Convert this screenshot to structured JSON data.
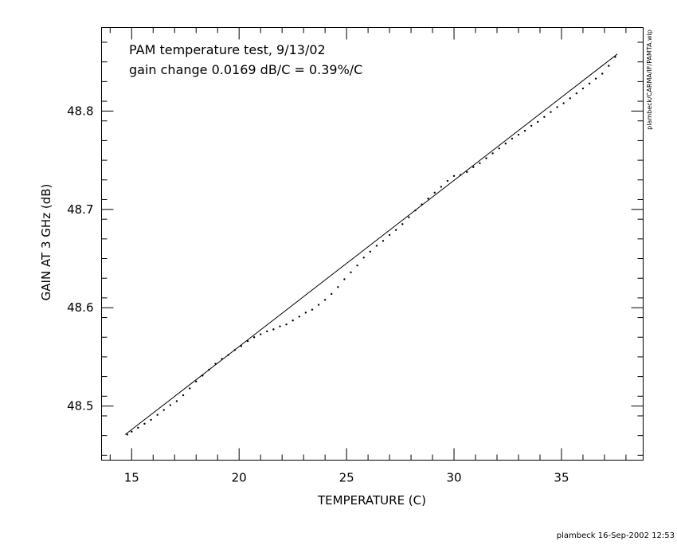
{
  "chart_data": {
    "type": "scatter",
    "title_lines": [
      "PAM temperature test, 9/13/02",
      "gain change 0.0169 dB/C = 0.39%/C"
    ],
    "xlabel": "TEMPERATURE (C)",
    "ylabel": "GAIN AT 3 GHz (dB)",
    "xlim": [
      13.6,
      38.8
    ],
    "ylim": [
      48.445,
      48.885
    ],
    "x_ticks": [
      15,
      20,
      25,
      30,
      35
    ],
    "y_ticks": [
      48.5,
      48.6,
      48.7,
      48.8
    ],
    "y_tick_labels": [
      "48.5",
      "48.6",
      "48.7",
      "48.8"
    ],
    "grid": false,
    "fit_line": {
      "x": [
        14.7,
        37.6
      ],
      "y": [
        48.471,
        48.858
      ],
      "slope_db_per_c": 0.0169
    },
    "series": [
      {
        "points": [
          [
            14.8,
            48.471
          ],
          [
            15.0,
            48.474
          ],
          [
            15.3,
            48.478
          ],
          [
            15.6,
            48.482
          ],
          [
            15.9,
            48.486
          ],
          [
            16.2,
            48.491
          ],
          [
            16.5,
            48.496
          ],
          [
            16.8,
            48.501
          ],
          [
            17.1,
            48.505
          ],
          [
            17.4,
            48.511
          ],
          [
            17.7,
            48.518
          ],
          [
            18.0,
            48.525
          ],
          [
            18.3,
            48.531
          ],
          [
            18.6,
            48.537
          ],
          [
            18.9,
            48.543
          ],
          [
            19.2,
            48.548
          ],
          [
            19.5,
            48.552
          ],
          [
            19.8,
            48.557
          ],
          [
            20.1,
            48.561
          ],
          [
            20.4,
            48.566
          ],
          [
            20.7,
            48.57
          ],
          [
            21.0,
            48.573
          ],
          [
            21.3,
            48.576
          ],
          [
            21.6,
            48.578
          ],
          [
            21.9,
            48.581
          ],
          [
            22.2,
            48.583
          ],
          [
            22.5,
            48.587
          ],
          [
            22.8,
            48.591
          ],
          [
            23.1,
            48.595
          ],
          [
            23.4,
            48.598
          ],
          [
            23.7,
            48.603
          ],
          [
            24.0,
            48.608
          ],
          [
            24.3,
            48.614
          ],
          [
            24.6,
            48.621
          ],
          [
            24.9,
            48.629
          ],
          [
            25.2,
            48.636
          ],
          [
            25.5,
            48.643
          ],
          [
            25.8,
            48.651
          ],
          [
            26.1,
            48.657
          ],
          [
            26.4,
            48.663
          ],
          [
            26.7,
            48.668
          ],
          [
            27.0,
            48.674
          ],
          [
            27.3,
            48.679
          ],
          [
            27.6,
            48.685
          ],
          [
            27.9,
            48.692
          ],
          [
            28.2,
            48.699
          ],
          [
            28.5,
            48.705
          ],
          [
            28.8,
            48.711
          ],
          [
            29.1,
            48.717
          ],
          [
            29.4,
            48.723
          ],
          [
            29.7,
            48.729
          ],
          [
            30.0,
            48.734
          ],
          [
            30.3,
            48.735
          ],
          [
            30.6,
            48.738
          ],
          [
            30.9,
            48.743
          ],
          [
            31.2,
            48.747
          ],
          [
            31.5,
            48.752
          ],
          [
            31.8,
            48.757
          ],
          [
            32.1,
            48.762
          ],
          [
            32.4,
            48.767
          ],
          [
            32.7,
            48.772
          ],
          [
            33.0,
            48.776
          ],
          [
            33.3,
            48.78
          ],
          [
            33.6,
            48.785
          ],
          [
            33.9,
            48.789
          ],
          [
            34.2,
            48.794
          ],
          [
            34.5,
            48.799
          ],
          [
            34.8,
            48.804
          ],
          [
            35.1,
            48.808
          ],
          [
            35.4,
            48.813
          ],
          [
            35.7,
            48.818
          ],
          [
            36.0,
            48.823
          ],
          [
            36.3,
            48.828
          ],
          [
            36.6,
            48.833
          ],
          [
            36.9,
            48.838
          ],
          [
            37.2,
            48.846
          ],
          [
            37.5,
            48.855
          ]
        ]
      }
    ]
  },
  "footer": {
    "plot_file": "plambeck/CARMA/IF/PAMTA.wip",
    "stamp": "plambeck 16-Sep-2002 12:53"
  }
}
